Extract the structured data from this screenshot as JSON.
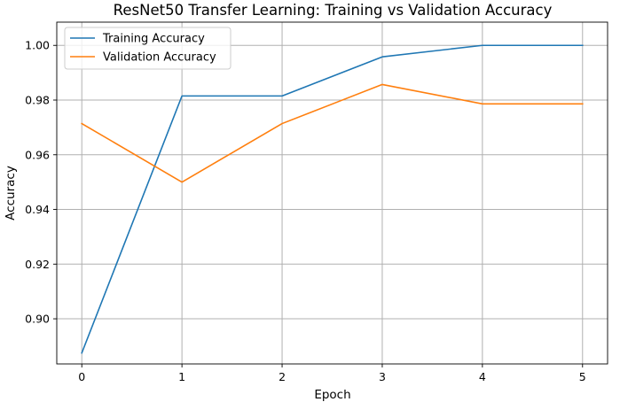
{
  "chart_data": {
    "type": "line",
    "title": "ResNet50 Transfer Learning: Training vs Validation Accuracy",
    "xlabel": "Epoch",
    "ylabel": "Accuracy",
    "x": [
      0,
      1,
      2,
      3,
      4,
      5
    ],
    "xlim": [
      -0.25,
      5.25
    ],
    "ylim": [
      0.8835,
      1.0085
    ],
    "xticks": [
      0,
      1,
      2,
      3,
      4,
      5
    ],
    "yticks": [
      0.9,
      0.92,
      0.94,
      0.96,
      0.98,
      1.0
    ],
    "xtick_labels": [
      "0",
      "1",
      "2",
      "3",
      "4",
      "5"
    ],
    "ytick_labels": [
      "0.90",
      "0.92",
      "0.94",
      "0.96",
      "0.98",
      "1.00"
    ],
    "grid": true,
    "legend_position": "top-left",
    "series": [
      {
        "name": "Training Accuracy",
        "color": "#1f77b4",
        "values": [
          0.8875,
          0.9815,
          0.9815,
          0.9958,
          1.0,
          1.0
        ]
      },
      {
        "name": "Validation Accuracy",
        "color": "#ff7f0e",
        "values": [
          0.9714,
          0.95,
          0.9714,
          0.9857,
          0.9786,
          0.9786
        ]
      }
    ]
  }
}
